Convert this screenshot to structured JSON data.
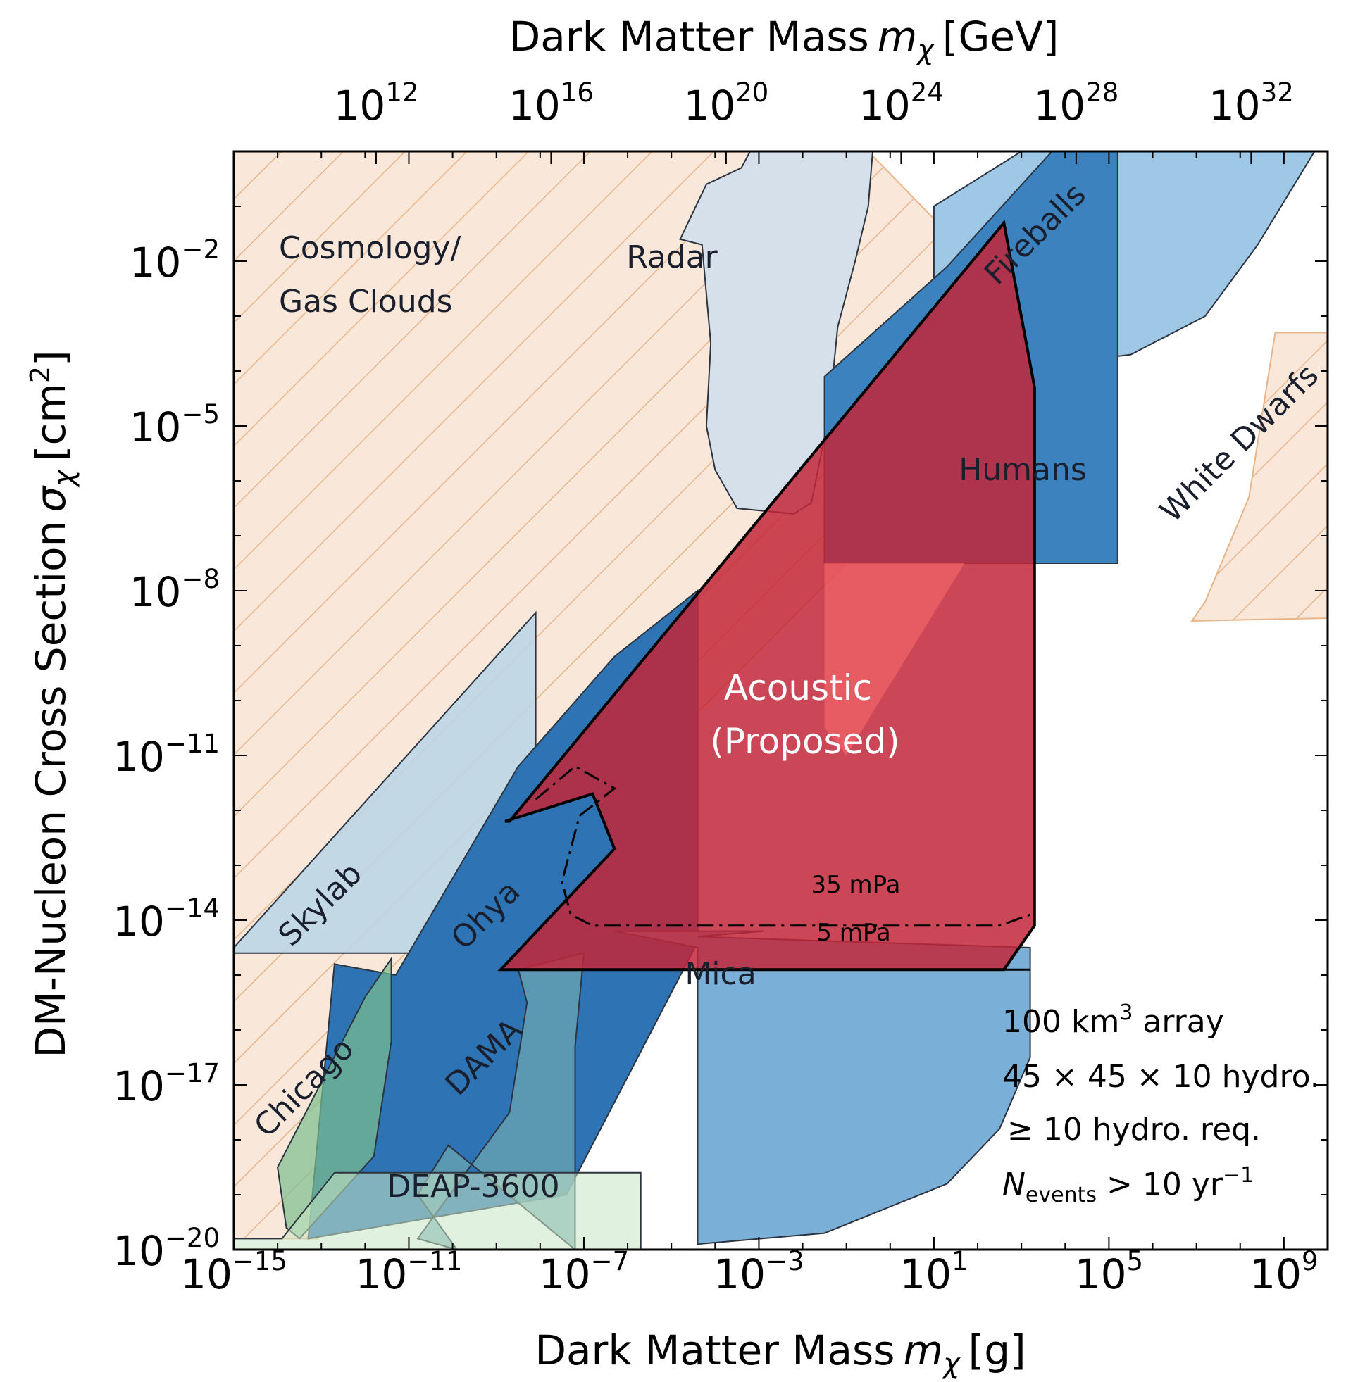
{
  "chart_data": {
    "type": "area",
    "xlabel": "Dark Matter Mass m_χ [g]",
    "x2label": "Dark Matter Mass m_χ [GeV]",
    "ylabel": "DM-Nucleon Cross Section σ_χ [cm²]",
    "xscale": "log",
    "yscale": "log",
    "xlim": [
      1e-15,
      10000000000.0
    ],
    "ylim": [
      1e-20,
      1.0
    ],
    "x_ticks": [
      "10^-15",
      "10^-11",
      "10^-7",
      "10^-3",
      "10^1",
      "10^5",
      "10^9"
    ],
    "y_ticks": [
      "10^-20",
      "10^-17",
      "10^-14",
      "10^-11",
      "10^-8",
      "10^-5",
      "10^-2"
    ],
    "x2_ticks": [
      "10^12",
      "10^16",
      "10^20",
      "10^24",
      "10^28",
      "10^32"
    ],
    "regions": [
      {
        "name": "Cosmology/ Gas Clouds",
        "label_lines": [
          "Cosmology/",
          "Gas Clouds"
        ],
        "style": "hatched",
        "fill": "#f9e8d9",
        "stroke": "#e8b48a",
        "points": [
          [
            -15,
            -14.5
          ],
          [
            -15,
            0
          ],
          [
            -0.5,
            0
          ],
          [
            1.7,
            -1.8
          ],
          [
            1.7,
            -7.5
          ],
          [
            -1,
            -7.5
          ],
          [
            -7,
            -12.3
          ],
          [
            -9,
            -14.6
          ],
          [
            -13.1,
            -19.8
          ],
          [
            -15,
            -19.8
          ]
        ]
      },
      {
        "name": "White Dwarfs",
        "label_lines": [
          "White Dwarfs"
        ],
        "style": "hatched",
        "fill": "#f9e8d9",
        "stroke": "#e8b48a",
        "points": [
          [
            8.8,
            -3.3
          ],
          [
            10,
            -3.3
          ],
          [
            10,
            -8.5
          ],
          [
            6.9,
            -8.55
          ],
          [
            7.2,
            -8.2
          ],
          [
            8.2,
            -6.3
          ]
        ]
      },
      {
        "name": "Radar",
        "label_lines": [
          "Radar"
        ],
        "fill": "#d6e0eb",
        "stroke": "#2b3440",
        "points": [
          [
            -3.2,
            0
          ],
          [
            -0.4,
            0
          ],
          [
            -0.5,
            -1
          ],
          [
            -0.8,
            -2
          ],
          [
            -1.2,
            -3.2
          ],
          [
            -1.4,
            -4.8
          ],
          [
            -1.8,
            -6.4
          ],
          [
            -2.2,
            -6.6
          ],
          [
            -3.5,
            -6.5
          ],
          [
            -4,
            -5.8
          ],
          [
            -4.2,
            -5
          ],
          [
            -4.1,
            -3.5
          ],
          [
            -4.3,
            -1.7
          ],
          [
            -4.8,
            -1.6
          ],
          [
            -4.2,
            -0.6
          ],
          [
            -3.4,
            -0.3
          ]
        ]
      },
      {
        "name": "Fireballs",
        "label_lines": [
          "Fireballs"
        ],
        "fill": "#9ec8e6",
        "stroke": "#2b3440",
        "points": [
          [
            1,
            -1
          ],
          [
            3,
            0
          ],
          [
            9.7,
            0
          ],
          [
            8.4,
            -1.7
          ],
          [
            7.2,
            -3
          ],
          [
            5.5,
            -3.7
          ],
          [
            4.5,
            -3.8
          ],
          [
            2.9,
            -4
          ],
          [
            2.2,
            -4
          ],
          [
            1,
            -3.9
          ]
        ]
      },
      {
        "name": "Humans",
        "label_lines": [
          "Humans"
        ],
        "fill": "#3c82bf",
        "stroke": "#2b3440",
        "points": [
          [
            -1.5,
            -7.5
          ],
          [
            5.2,
            -7.5
          ],
          [
            5.2,
            0
          ],
          [
            3.7,
            0
          ],
          [
            1.3,
            -2.1
          ],
          [
            -1.5,
            -4.1
          ]
        ]
      },
      {
        "name": "Skylab",
        "label_lines": [
          "Skylab"
        ],
        "fill": "#bcd6e5",
        "stroke": "#2b3440",
        "points": [
          [
            -15,
            -14.5
          ],
          [
            -8.1,
            -8.4
          ],
          [
            -8.1,
            -14.6
          ],
          [
            -15,
            -14.6
          ]
        ]
      },
      {
        "name": "Ohya",
        "label_lines": [
          "Ohya"
        ],
        "fill": "#2e74b5",
        "stroke": "#2b3440",
        "points": [
          [
            -12.7,
            -14.8
          ],
          [
            -11.3,
            -15
          ],
          [
            -8.5,
            -11.2
          ],
          [
            -6.3,
            -9.2
          ],
          [
            -4.4,
            -8
          ],
          [
            -4.4,
            -14.4
          ],
          [
            -7.4,
            -19
          ],
          [
            -13.3,
            -19.8
          ]
        ]
      },
      {
        "name": "Mica",
        "label_lines": [
          "Mica"
        ],
        "fill": "#7aafd8",
        "stroke": "#2b3440",
        "points": [
          [
            -6.3,
            -14.2
          ],
          [
            -2.9,
            -14.2
          ],
          [
            -4.4,
            -14.3
          ],
          [
            3.2,
            -14.5
          ],
          [
            3.2,
            -16.5
          ],
          [
            2.5,
            -17.8
          ],
          [
            1.3,
            -18.8
          ],
          [
            -1.5,
            -19.7
          ],
          [
            -4.4,
            -19.9
          ],
          [
            -4.4,
            -14.5
          ]
        ]
      },
      {
        "name": "DAMA",
        "label_lines": [
          "DAMA"
        ],
        "fill": "#6aa6b0",
        "stroke": "#2b3440",
        "points": [
          [
            -10.1,
            -18.1
          ],
          [
            -10.8,
            -19
          ],
          [
            -9.9,
            -20
          ],
          [
            -10.8,
            -19.8
          ],
          [
            -8.7,
            -17.5
          ],
          [
            -8.3,
            -15.5
          ],
          [
            -8.5,
            -14.9
          ],
          [
            -7,
            -14.6
          ],
          [
            -7.2,
            -16.3
          ],
          [
            -7.2,
            -20
          ]
        ]
      },
      {
        "name": "Chicago",
        "label_lines": [
          "Chicago"
        ],
        "fill": "#7cbf8f",
        "stroke": "#2b3440",
        "points": [
          [
            -13.5,
            -19.8
          ],
          [
            -11.8,
            -18.3
          ],
          [
            -11.4,
            -16.2
          ],
          [
            -11.4,
            -14.7
          ],
          [
            -12,
            -15.4
          ],
          [
            -14,
            -18.5
          ],
          [
            -13.8,
            -19.6
          ]
        ]
      },
      {
        "name": "DEAP-3600",
        "label_lines": [
          "DEAP-3600"
        ],
        "fill": "#c8e6c4",
        "stroke": "#2b3440",
        "points": [
          [
            -15,
            -19.8
          ],
          [
            -13.9,
            -19.8
          ],
          [
            -12.7,
            -18.6
          ],
          [
            -5.7,
            -18.6
          ],
          [
            -5.7,
            -20
          ],
          [
            -15,
            -20
          ]
        ]
      },
      {
        "name": "Acoustic (Proposed)",
        "label_lines": [
          "Acoustic",
          "(Proposed)"
        ],
        "fill": "#c2273a",
        "stroke": "#000000",
        "points": [
          [
            -8.8,
            -12.2
          ],
          [
            -6.8,
            -11.7
          ],
          [
            -6.3,
            -12.7
          ],
          [
            -8.9,
            -14.9
          ],
          [
            2.6,
            -14.9
          ],
          [
            3.3,
            -14.1
          ],
          [
            3.3,
            -4.3
          ],
          [
            2.6,
            -1.3
          ],
          [
            -8.7,
            -12.2
          ]
        ]
      }
    ],
    "contours": [
      {
        "name": "35 mPa",
        "style": "dashdot",
        "points": [
          [
            -8.1,
            -11.8
          ],
          [
            -7.2,
            -11.2
          ],
          [
            -6.3,
            -11.6
          ],
          [
            -7.1,
            -12.1
          ],
          [
            -7.5,
            -13.3
          ],
          [
            -7.3,
            -13.9
          ],
          [
            -6.8,
            -14.1
          ],
          [
            2.5,
            -14.1
          ],
          [
            3.2,
            -13.9
          ]
        ]
      },
      {
        "name": "5 mPa",
        "style": "solid",
        "points": [
          [
            -8.9,
            -14.9
          ],
          [
            3.2,
            -14.9
          ]
        ]
      }
    ],
    "annotations": [
      {
        "line": 1,
        "text": "100 km³ array"
      },
      {
        "line": 2,
        "text": "45 × 45 × 10 hydro."
      },
      {
        "line": 3,
        "text": "≥ 10 hydro. req."
      },
      {
        "line": 4,
        "text": "N_events > 10 yr⁻¹"
      }
    ]
  },
  "axes": {
    "bottom_title_text": "Dark Matter Mass",
    "bottom_title_unit": "[g]",
    "top_title_text": "Dark Matter Mass",
    "top_title_unit": "[GeV]",
    "left_title_text": "DM-Nucleon Cross Section",
    "left_title_unit": "[cm",
    "left_title_close": "]",
    "symbol_m": "m",
    "symbol_chi": "χ",
    "symbol_sigma": "σ",
    "superscript_two": "2"
  },
  "labels": {
    "cosmology_line1": "Cosmology/",
    "cosmology_line2": "Gas Clouds",
    "radar": "Radar",
    "fireballs": "Fireballs",
    "humans": "Humans",
    "white_dwarfs": "White Dwarfs",
    "skylab": "Skylab",
    "ohya": "Ohya",
    "mica": "Mica",
    "dama": "DAMA",
    "chicago": "Chicago",
    "deap": "DEAP-3600",
    "acoustic_line1": "Acoustic",
    "acoustic_line2": "(Proposed)",
    "contour_35": "35 mPa",
    "contour_5": "5 mPa"
  },
  "note": {
    "line1_text": "100 km",
    "line1_sup": "3",
    "line1_tail": " array",
    "line2": "45 × 45 × 10 hydro.",
    "line3": "≥ 10 hydro. req.",
    "line4_n": "N",
    "line4_sub": "events",
    "line4_tail": " > 10 yr",
    "line4_sup": "−1"
  },
  "colors": {
    "hatch": "#e8b48a",
    "hatch_fill": "#f9e8d9",
    "acoustic": "#c2273a",
    "acoustic_highlight": "#ff6b6b"
  }
}
